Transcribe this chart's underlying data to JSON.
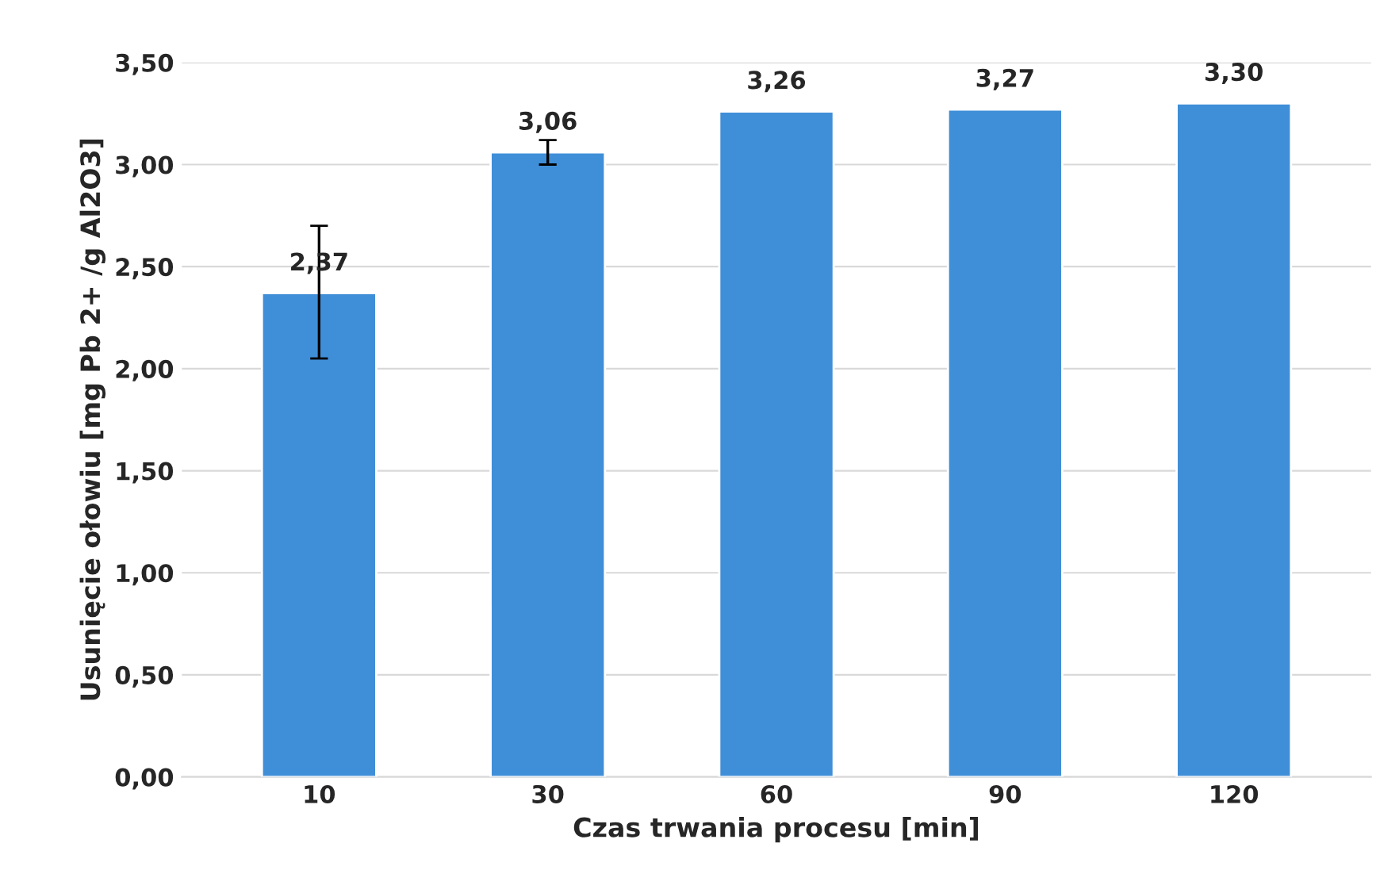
{
  "chart_data": {
    "type": "bar",
    "xlabel": "Czas trwania procesu [min]",
    "ylabel": "Usunięcie ołowiu [mg Pb 2+ /g Al2O3]",
    "categories": [
      "10",
      "30",
      "60",
      "90",
      "120"
    ],
    "values": [
      2.37,
      3.06,
      3.26,
      3.27,
      3.3
    ],
    "value_labels": [
      "2,37",
      "3,06",
      "3,26",
      "3,27",
      "3,30"
    ],
    "errors": [
      [
        2.05,
        2.7
      ],
      [
        3.0,
        3.12
      ],
      null,
      null,
      null
    ],
    "color": "#3f8ed8",
    "ylim": [
      0,
      3.5
    ],
    "yticks": [
      {
        "value": 0,
        "label": "0,00"
      },
      {
        "value": 0.5,
        "label": "0,50"
      },
      {
        "value": 1.0,
        "label": "1,00"
      },
      {
        "value": 1.5,
        "label": "1,50"
      },
      {
        "value": 2.0,
        "label": "2,00"
      },
      {
        "value": 2.5,
        "label": "2,50"
      },
      {
        "value": 3.0,
        "label": "3,00"
      },
      {
        "value": 3.5,
        "label": "3,50"
      }
    ],
    "grid": "y"
  }
}
